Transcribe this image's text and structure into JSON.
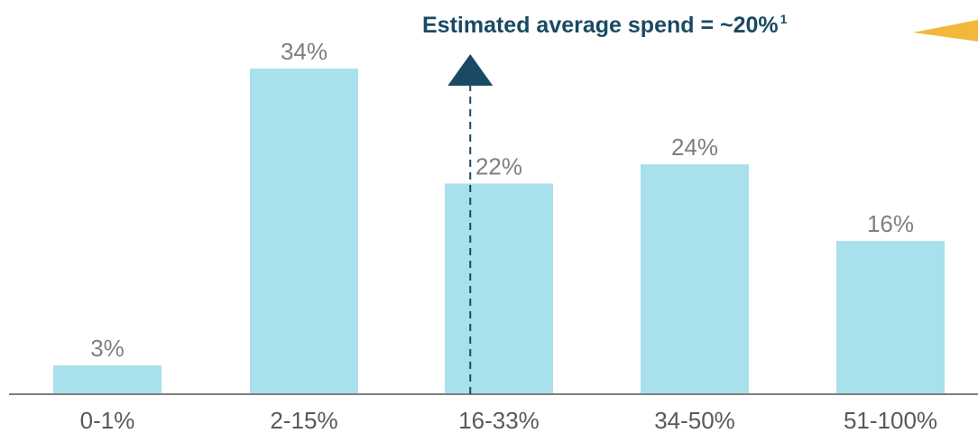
{
  "chart_data": {
    "type": "bar",
    "categories": [
      "0-1%",
      "2-15%",
      "16-33%",
      "34-50%",
      "51-100%"
    ],
    "values": [
      3,
      34,
      22,
      24,
      16
    ],
    "value_labels": [
      "3%",
      "34%",
      "22%",
      "24%",
      "16%"
    ],
    "unit": "%",
    "ylim": [
      0,
      34
    ],
    "grid": false,
    "legend": "none",
    "title": "",
    "xlabel": "",
    "ylabel": "",
    "annotation": {
      "text": "Estimated average spend = ~20%",
      "superscript": "1",
      "marker_x": 20
    }
  },
  "colors": {
    "bar": "#a8e0ec",
    "axis": "#7f7f7f",
    "value_label": "#7f7f7f",
    "tick_label": "#595959",
    "annotation": "#1a4a63",
    "accent": "#f1b83b"
  }
}
